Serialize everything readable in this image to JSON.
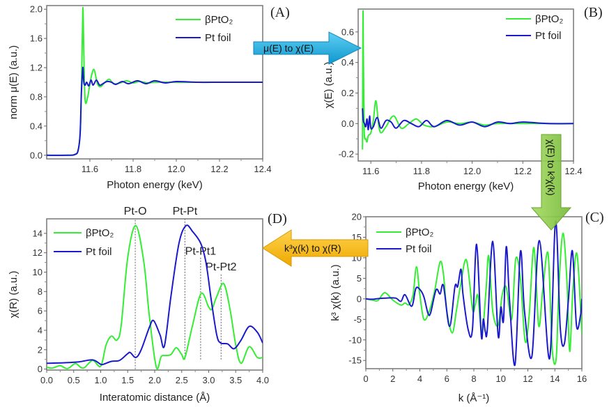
{
  "colors": {
    "green": "#33ee33",
    "blue": "#1a1acc",
    "frame": "#777777",
    "arrow_blue": "#1ab0e6",
    "arrow_green": "#8ccc44",
    "arrow_orange": "#f5b800"
  },
  "arrows": {
    "a_to_b": "μ(E) to χ(E)",
    "b_to_c": "χ(E) to k³χ(k)",
    "c_to_d": "k³χ(k) to χ(R)"
  },
  "chart_data": [
    {
      "id": "A",
      "panel_label": "(A)",
      "type": "line",
      "xlabel": "Photon energy (keV)",
      "ylabel": "norm  μ(E) (a.u.)",
      "xlim": [
        11.4,
        12.4
      ],
      "ylim": [
        -0.05,
        2.05
      ],
      "xticks": [
        11.6,
        11.8,
        12.0,
        12.2,
        12.4
      ],
      "xtick_labels": [
        "11.6",
        "11.8",
        "12.0",
        "12.2",
        "12.4"
      ],
      "yticks": [
        0.0,
        0.4,
        0.8,
        1.2,
        1.6,
        2.0
      ],
      "ytick_labels": [
        "0.0",
        "0.4",
        "0.8",
        "1.2",
        "1.6",
        "2.0"
      ],
      "legend": {
        "position": "top-right",
        "entries": [
          "βPtO₂",
          "Pt foil"
        ]
      },
      "series": [
        {
          "name": "βPtO₂",
          "color": "green",
          "x": [
            11.4,
            11.5,
            11.53,
            11.545,
            11.555,
            11.56,
            11.565,
            11.568,
            11.572,
            11.578,
            11.59,
            11.6,
            11.61,
            11.62,
            11.635,
            11.65,
            11.67,
            11.69,
            11.71,
            11.74,
            11.77,
            11.8,
            11.83,
            11.87,
            11.9,
            11.95,
            12.0,
            12.1,
            12.2,
            12.3,
            12.4
          ],
          "y": [
            0.0,
            0.0,
            0.01,
            0.06,
            0.3,
            0.8,
            1.6,
            2.02,
            1.4,
            0.75,
            0.8,
            0.98,
            1.12,
            1.17,
            0.98,
            0.94,
            1.0,
            1.04,
            0.98,
            0.99,
            1.02,
            0.99,
            1.01,
            0.99,
            1.0,
            1.0,
            1.0,
            1.0,
            1.0,
            1.0,
            1.0
          ]
        },
        {
          "name": "Pt foil",
          "color": "blue",
          "x": [
            11.4,
            11.5,
            11.53,
            11.545,
            11.555,
            11.56,
            11.565,
            11.568,
            11.572,
            11.578,
            11.585,
            11.595,
            11.605,
            11.615,
            11.63,
            11.645,
            11.66,
            11.68,
            11.7,
            11.72,
            11.75,
            11.78,
            11.82,
            11.86,
            11.9,
            11.95,
            12.0,
            12.1,
            12.2,
            12.3,
            12.4
          ],
          "y": [
            0.0,
            0.0,
            0.01,
            0.06,
            0.3,
            0.8,
            1.1,
            1.2,
            1.0,
            0.96,
            1.0,
            0.95,
            1.03,
            0.96,
            1.03,
            0.96,
            0.98,
            1.01,
            1.0,
            0.97,
            1.01,
            0.98,
            1.02,
            0.98,
            1.02,
            0.99,
            1.01,
            1.0,
            1.0,
            1.0,
            1.0
          ]
        }
      ]
    },
    {
      "id": "B",
      "panel_label": "(B)",
      "type": "line",
      "xlabel": "Photon energy (keV)",
      "ylabel": "χ(E) (a.u.)",
      "xlim": [
        11.55,
        12.4
      ],
      "ylim": [
        -0.245,
        0.75
      ],
      "xticks": [
        11.6,
        11.8,
        12.0,
        12.2,
        12.4
      ],
      "xtick_labels": [
        "11.6",
        "11.8",
        "12.0",
        "12.2",
        "12.4"
      ],
      "yticks": [
        -0.2,
        0.0,
        0.2,
        0.4,
        0.6
      ],
      "ytick_labels": [
        "-0.2",
        "0.0",
        "0.2",
        "0.4",
        "0.6"
      ],
      "legend": {
        "position": "top-right",
        "entries": [
          "βPtO₂",
          "Pt foil"
        ]
      },
      "series": [
        {
          "name": "βPtO₂",
          "color": "green",
          "x": [
            11.567,
            11.569,
            11.571,
            11.574,
            11.58,
            11.585,
            11.59,
            11.6,
            11.61,
            11.62,
            11.63,
            11.64,
            11.66,
            11.69,
            11.72,
            11.75,
            11.78,
            11.81,
            11.85,
            11.9,
            11.95,
            12.0,
            12.05,
            12.1,
            12.2,
            12.3,
            12.4
          ],
          "y": [
            -0.17,
            0.72,
            0.4,
            -0.05,
            -0.1,
            -0.12,
            -0.08,
            -0.06,
            0.02,
            0.15,
            0.0,
            -0.06,
            -0.02,
            0.05,
            -0.03,
            0.0,
            0.03,
            -0.01,
            -0.02,
            0.01,
            0.0,
            0.01,
            -0.01,
            0.0,
            0.0,
            0.0,
            0.0
          ]
        },
        {
          "name": "Pt foil",
          "color": "blue",
          "x": [
            11.567,
            11.57,
            11.575,
            11.58,
            11.585,
            11.59,
            11.595,
            11.6,
            11.61,
            11.625,
            11.64,
            11.66,
            11.68,
            11.7,
            11.73,
            11.76,
            11.79,
            11.82,
            11.85,
            11.9,
            11.95,
            12.0,
            12.05,
            12.1,
            12.15,
            12.2,
            12.3,
            12.4
          ],
          "y": [
            0.1,
            0.02,
            0.0,
            -0.02,
            0.03,
            -0.04,
            0.05,
            -0.03,
            -0.02,
            0.04,
            -0.03,
            0.02,
            0.01,
            -0.03,
            0.02,
            0.0,
            -0.02,
            0.02,
            -0.02,
            0.02,
            -0.01,
            0.01,
            -0.02,
            0.01,
            0.0,
            0.01,
            0.0,
            0.0
          ]
        }
      ]
    },
    {
      "id": "C",
      "panel_label": "(C)",
      "type": "line",
      "xlabel": "k (Å⁻¹)",
      "ylabel": "k³ χ(k) (a.u.)",
      "xlim": [
        0,
        16
      ],
      "ylim": [
        -17,
        20
      ],
      "xticks": [
        0,
        2,
        4,
        6,
        8,
        10,
        12,
        14,
        16
      ],
      "xtick_labels": [
        "0",
        "2",
        "4",
        "6",
        "8",
        "10",
        "12",
        "14",
        "16"
      ],
      "yticks": [
        -15,
        -10,
        -5,
        0,
        5,
        10,
        15,
        20
      ],
      "ytick_labels": [
        "-15",
        "-10",
        "-5",
        "0",
        "5",
        "10",
        "15",
        "20"
      ],
      "legend": {
        "position": "top-left",
        "entries": [
          "βPtO₂",
          "Pt foil"
        ]
      },
      "series": [
        {
          "name": "βPtO₂",
          "color": "green",
          "x": [
            0,
            0.5,
            0.9,
            1.4,
            2.0,
            2.6,
            2.9,
            3.2,
            3.5,
            3.75,
            4.0,
            4.3,
            4.7,
            5.1,
            5.5,
            5.75,
            6.0,
            6.4,
            6.7,
            7.0,
            7.45,
            7.9,
            8.1,
            8.3,
            8.6,
            8.9,
            9.1,
            9.4,
            9.8,
            10.1,
            10.4,
            10.8,
            11.1,
            11.45,
            11.8,
            12.1,
            12.45,
            12.8,
            13.1,
            13.5,
            13.8,
            14.1,
            14.3,
            14.6,
            14.9,
            15.1,
            15.35,
            15.65,
            16.0
          ],
          "y": [
            0,
            -0.3,
            -0.4,
            1.5,
            -0.3,
            -1.5,
            -1.0,
            -1.4,
            1.0,
            7.8,
            1.0,
            -5.0,
            -3.0,
            2.0,
            9.0,
            6.0,
            -3.0,
            -8.3,
            -3.0,
            3.0,
            9.5,
            -2.5,
            -1.5,
            0.8,
            -8.5,
            2.0,
            10.5,
            -3.0,
            -6.5,
            1.0,
            2.8,
            -5.0,
            9.7,
            5.0,
            -10.3,
            -4.0,
            12.5,
            -6.5,
            2.0,
            11.0,
            -12.0,
            -14.5,
            3.0,
            16.0,
            4.0,
            -12.8,
            3.0,
            10.8,
            -8.5
          ]
        },
        {
          "name": "Pt foil",
          "color": "blue",
          "x": [
            0,
            0.5,
            1.0,
            1.5,
            2.2,
            2.6,
            2.9,
            3.4,
            3.7,
            4.0,
            4.3,
            4.6,
            4.8,
            5.2,
            5.5,
            5.75,
            6.2,
            6.6,
            6.8,
            7.05,
            7.2,
            7.6,
            7.9,
            8.2,
            8.55,
            8.7,
            8.85,
            9.0,
            9.4,
            9.8,
            10.0,
            10.2,
            10.4,
            10.65,
            11.05,
            11.45,
            11.75,
            12.3,
            12.85,
            13.6,
            14.05,
            14.4,
            14.7,
            15.0,
            15.3,
            15.6,
            15.9,
            16.0
          ],
          "y": [
            0,
            -0.1,
            0.1,
            0.2,
            0.2,
            -0.6,
            1.0,
            -1.8,
            2.5,
            2.3,
            0.5,
            -3.5,
            -3.4,
            2.2,
            1.2,
            3.2,
            -6.7,
            3.0,
            3.0,
            7.2,
            1.0,
            -7.8,
            -7.2,
            13.3,
            -9.0,
            -4.9,
            -8.0,
            -7.3,
            14.0,
            -9.0,
            -2.0,
            -5.2,
            12.7,
            -0.5,
            -16.0,
            11.5,
            -3.0,
            -14.0,
            14.2,
            -14.6,
            18.9,
            -7.0,
            -11.0,
            -0.5,
            11.7,
            -6.5,
            -4.0,
            0.0
          ]
        }
      ]
    },
    {
      "id": "D",
      "panel_label": "(D)",
      "type": "line",
      "xlabel": "Interatomic distance (Å)",
      "ylabel": "χ(R) (a.u.)",
      "xlim": [
        0.0,
        4.0
      ],
      "ylim": [
        -0.1,
        15.5
      ],
      "xticks": [
        0.0,
        0.5,
        1.0,
        1.5,
        2.0,
        2.5,
        3.0,
        3.5,
        4.0
      ],
      "xtick_labels": [
        "0.0",
        "0.5",
        "1.0",
        "1.5",
        "2.0",
        "2.5",
        "3.0",
        "3.5",
        "4.0"
      ],
      "yticks": [
        0,
        2,
        4,
        6,
        8,
        10,
        12,
        14
      ],
      "ytick_labels": [
        "0",
        "2",
        "4",
        "6",
        "8",
        "10",
        "12",
        "14"
      ],
      "legend": {
        "position": "top-left",
        "entries": [
          "βPtO₂",
          "Pt foil"
        ]
      },
      "annotations": [
        {
          "label": "Pt-O",
          "x": 1.64,
          "line_from": 0,
          "line_to": 15.5
        },
        {
          "label": "Pt-Pt",
          "x": 2.56,
          "line_from": 1.0,
          "line_to": 15.5
        },
        {
          "label": "Pt-Pt1",
          "x": 2.85,
          "line_from": 1.0,
          "line_to": 11.5
        },
        {
          "label": "Pt-Pt2",
          "x": 3.23,
          "line_from": 1.0,
          "line_to": 9.9
        }
      ],
      "series": [
        {
          "name": "βPtO₂",
          "color": "green",
          "x": [
            0.0,
            0.1,
            0.25,
            0.38,
            0.5,
            0.55,
            0.68,
            0.85,
            1.0,
            1.1,
            1.2,
            1.3,
            1.38,
            1.5,
            1.65,
            1.8,
            1.9,
            2.03,
            2.12,
            2.2,
            2.3,
            2.4,
            2.5,
            2.56,
            2.7,
            2.86,
            3.0,
            3.06,
            3.15,
            3.28,
            3.4,
            3.5,
            3.6,
            3.75,
            3.9,
            4.0
          ],
          "y": [
            0.2,
            0.1,
            0.35,
            0.05,
            0.5,
            0.55,
            0.1,
            0.9,
            0.3,
            2.5,
            3.4,
            3.0,
            4.5,
            11.5,
            14.8,
            11.0,
            5.5,
            0.2,
            1.3,
            1.4,
            1.5,
            2.2,
            1.5,
            1.2,
            4.5,
            7.8,
            6.4,
            6.2,
            7.5,
            8.8,
            6.0,
            2.5,
            0.6,
            2.3,
            1.2,
            1.2
          ]
        },
        {
          "name": "Pt foil",
          "color": "blue",
          "x": [
            0.0,
            0.3,
            0.6,
            0.85,
            1.0,
            1.05,
            1.2,
            1.35,
            1.5,
            1.55,
            1.65,
            1.75,
            1.9,
            1.98,
            2.1,
            2.18,
            2.3,
            2.45,
            2.58,
            2.7,
            2.85,
            2.95,
            3.05,
            3.15,
            3.22,
            3.35,
            3.47,
            3.6,
            3.75,
            3.9,
            4.0
          ],
          "y": [
            0.6,
            0.65,
            0.75,
            0.95,
            0.5,
            0.5,
            0.8,
            0.9,
            1.6,
            1.7,
            1.2,
            2.0,
            4.3,
            5.0,
            3.5,
            2.4,
            7.5,
            13.0,
            14.8,
            14.2,
            13.0,
            11.0,
            7.0,
            3.5,
            2.7,
            2.6,
            2.1,
            3.0,
            4.4,
            3.8,
            2.7
          ]
        }
      ]
    }
  ]
}
